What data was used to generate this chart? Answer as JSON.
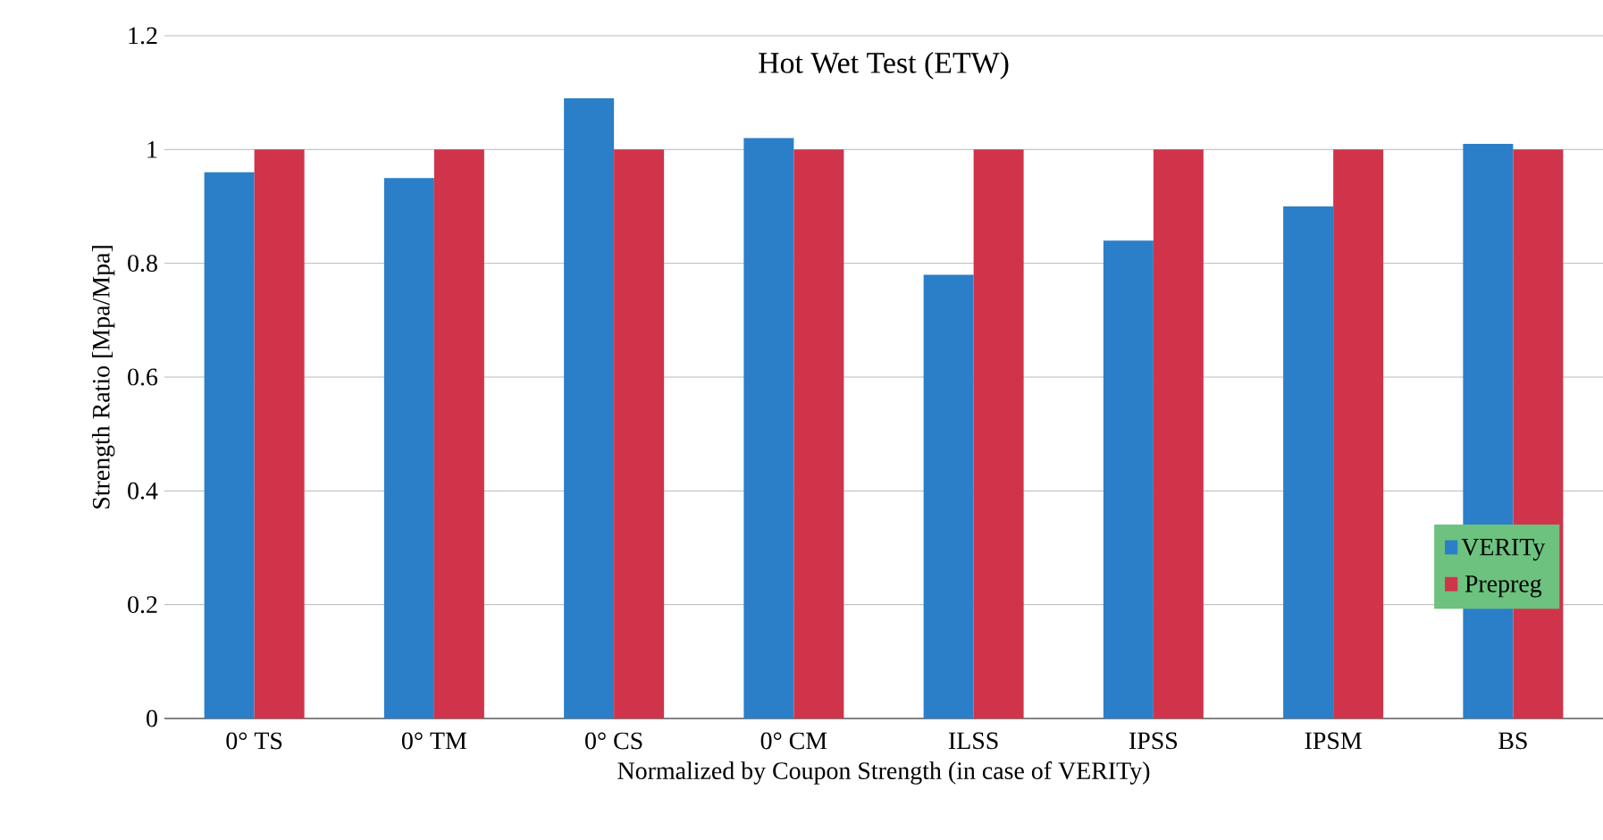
{
  "chart_data": {
    "type": "bar",
    "title": "Hot Wet Test (ETW)",
    "xlabel": "Normalized by Coupon Strength (in case of VERITy)",
    "ylabel": "Strength Ratio [Mpa/Mpa]",
    "categories": [
      "0° TS",
      "0° TM",
      "0° CS",
      "0° CM",
      "ILSS",
      "IPSS",
      "IPSM",
      "BS"
    ],
    "series": [
      {
        "name": "VERITy",
        "color": "#2a7fc8",
        "values": [
          0.96,
          0.95,
          1.09,
          1.02,
          0.78,
          0.84,
          0.9,
          1.01
        ]
      },
      {
        "name": "Prepreg",
        "color": "#d0344a",
        "values": [
          1,
          1,
          1,
          1,
          1,
          1,
          1,
          1
        ]
      }
    ],
    "ylim": [
      0,
      1.2
    ],
    "yticks": [
      0,
      0.2,
      0.4,
      0.6,
      0.8,
      1,
      1.2
    ],
    "grid": "y",
    "legend": "bottom right"
  }
}
